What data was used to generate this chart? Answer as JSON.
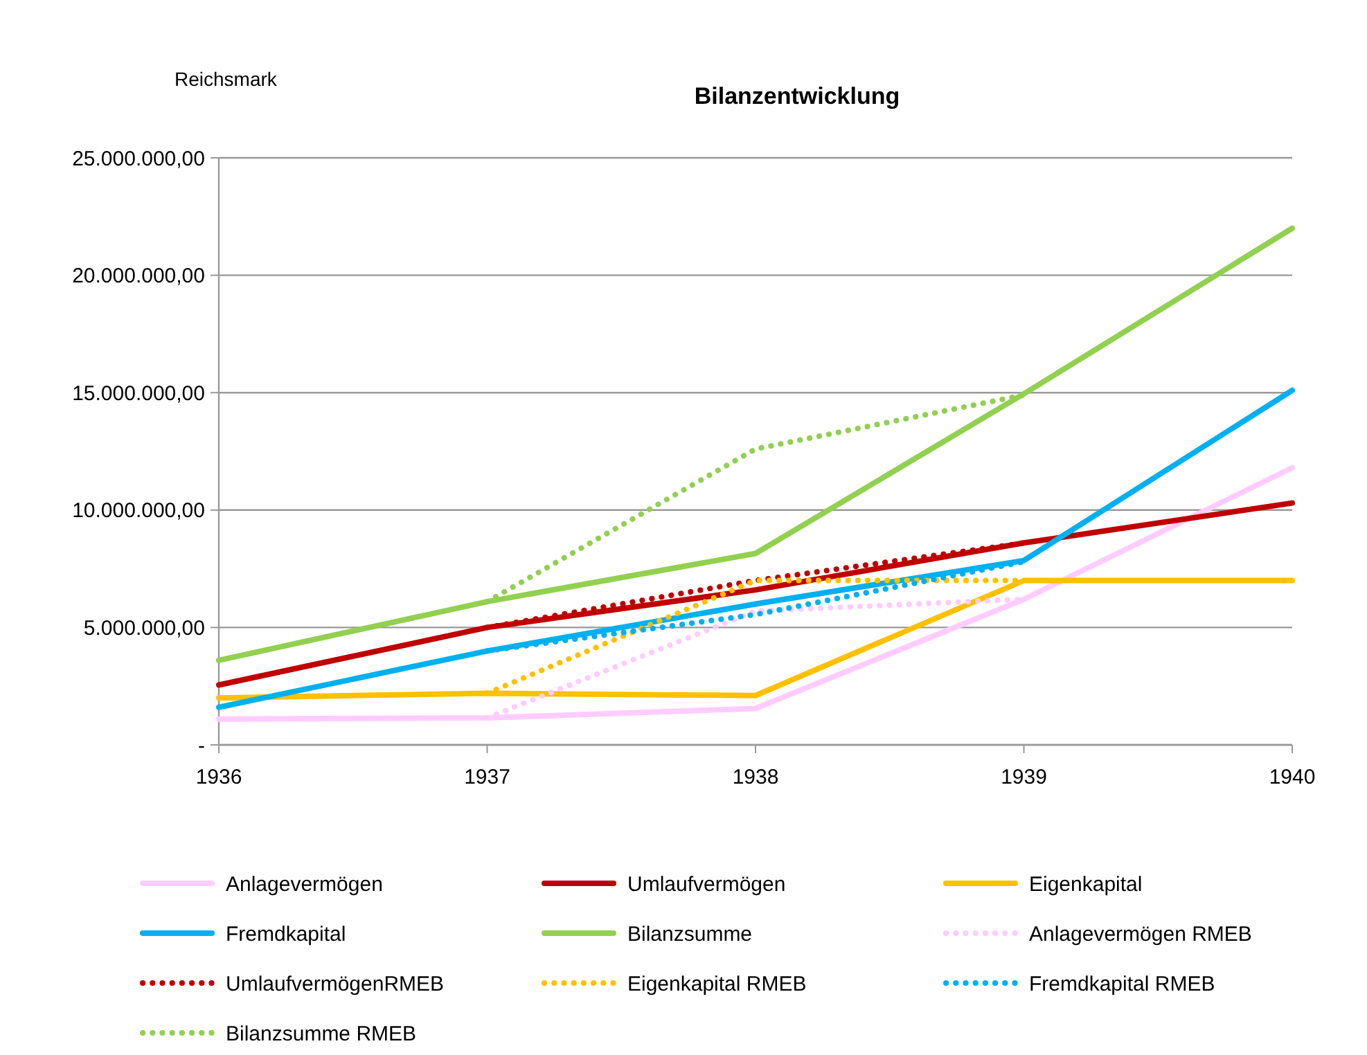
{
  "chart_data": {
    "type": "line",
    "title": "Bilanzentwicklung",
    "ylabel": "Reichsmark",
    "x": [
      1936,
      1937,
      1938,
      1939,
      1940
    ],
    "xlim": [
      1936,
      1940
    ],
    "xticks": [
      1936,
      1937,
      1938,
      1939,
      1940
    ],
    "ylim": [
      0,
      25000000
    ],
    "yticks": [
      {
        "value": 0,
        "label": "-"
      },
      {
        "value": 5000000,
        "label": "5.000.000,00"
      },
      {
        "value": 10000000,
        "label": "10.000.000,00"
      },
      {
        "value": 15000000,
        "label": "15.000.000,00"
      },
      {
        "value": 20000000,
        "label": "20.000.000,00"
      },
      {
        "value": 25000000,
        "label": "25.000.000,00"
      }
    ],
    "grid": "y",
    "legend": "bottom",
    "marker": "none",
    "series": [
      {
        "name": "Anlagevermögen",
        "color": "#ffccff",
        "line_style": "solid",
        "values": [
          1100000,
          1150000,
          1550000,
          6200000,
          11800000
        ]
      },
      {
        "name": "Umlaufvermögen",
        "color": "#c00000",
        "line_style": "solid",
        "values": [
          2550000,
          5000000,
          6600000,
          8600000,
          10300000
        ]
      },
      {
        "name": "Eigenkapital",
        "color": "#ffc000",
        "line_style": "solid",
        "values": [
          2000000,
          2200000,
          2100000,
          7000000,
          7000000
        ]
      },
      {
        "name": "Fremdkapital",
        "color": "#00b0f0",
        "line_style": "solid",
        "values": [
          1600000,
          4000000,
          6000000,
          7850000,
          15100000
        ]
      },
      {
        "name": "Bilanzsumme",
        "color": "#92d050",
        "line_style": "solid",
        "values": [
          3600000,
          6100000,
          8150000,
          14950000,
          22000000
        ]
      },
      {
        "name": "Anlagevermögen RMEB",
        "color": "#ffccff",
        "line_style": "dotted",
        "values": [
          null,
          1150000,
          5700000,
          6200000,
          null
        ]
      },
      {
        "name": "UmlaufvermögenRMEB",
        "color": "#c00000",
        "line_style": "dotted",
        "values": [
          null,
          5000000,
          7000000,
          8600000,
          null
        ]
      },
      {
        "name": "Eigenkapital RMEB",
        "color": "#ffc000",
        "line_style": "dotted",
        "values": [
          null,
          2200000,
          7000000,
          7000000,
          null
        ]
      },
      {
        "name": "Fremdkapital RMEB",
        "color": "#00b0f0",
        "line_style": "dotted",
        "values": [
          null,
          4000000,
          5550000,
          7800000,
          null
        ]
      },
      {
        "name": "Bilanzsumme RMEB",
        "color": "#92d050",
        "line_style": "dotted",
        "values": [
          null,
          6100000,
          12600000,
          14900000,
          null
        ]
      }
    ]
  }
}
